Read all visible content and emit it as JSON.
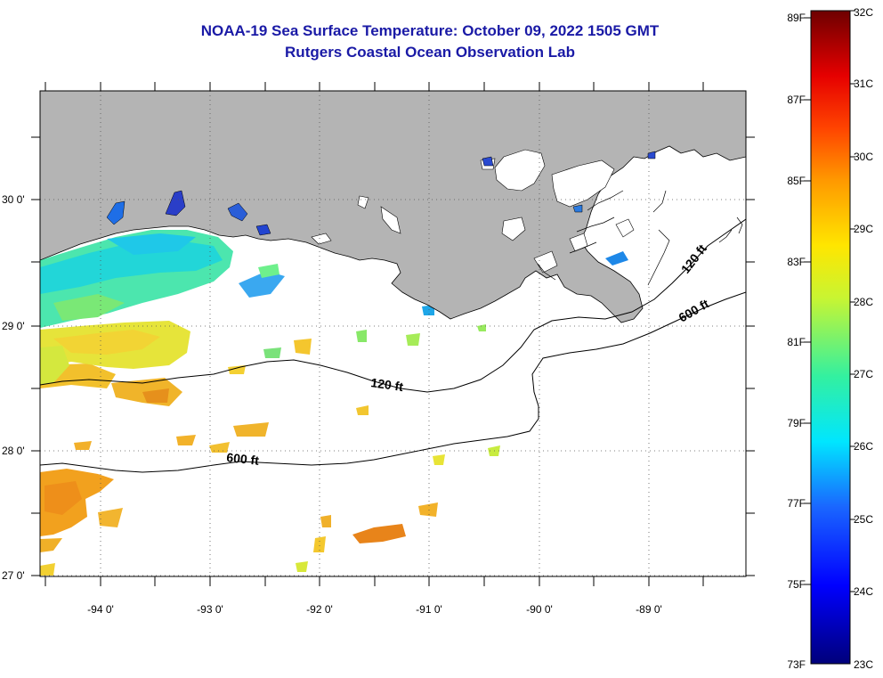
{
  "title": "NOAA-19 Sea Surface Temperature:  October 09, 2022 1505 GMT",
  "subtitle": "Rutgers Coastal Ocean Observation Lab",
  "map": {
    "lat_ticks": [
      "30 0'",
      "29 0'",
      "28 0'",
      "27 0'"
    ],
    "lon_ticks": [
      "-94 0'",
      "-93 0'",
      "-92 0'",
      "-91 0'",
      "-90 0'",
      "-89 0'"
    ],
    "contour_labels": [
      "120 ft",
      "600 ft",
      "120 ft",
      "600 ft"
    ],
    "land_color": "#b4b4b4",
    "coastline_color": "#000000"
  },
  "colorbar": {
    "fahrenheit_labels": [
      "89F",
      "87F",
      "85F",
      "83F",
      "81F",
      "79F",
      "77F",
      "75F",
      "73F"
    ],
    "celsius_labels": [
      "32C",
      "31C",
      "30C",
      "29C",
      "28C",
      "27C",
      "26C",
      "25C",
      "24C",
      "23C"
    ],
    "scale_top_color": "#6e0000",
    "scale_bottom_color": "#00007a"
  }
}
